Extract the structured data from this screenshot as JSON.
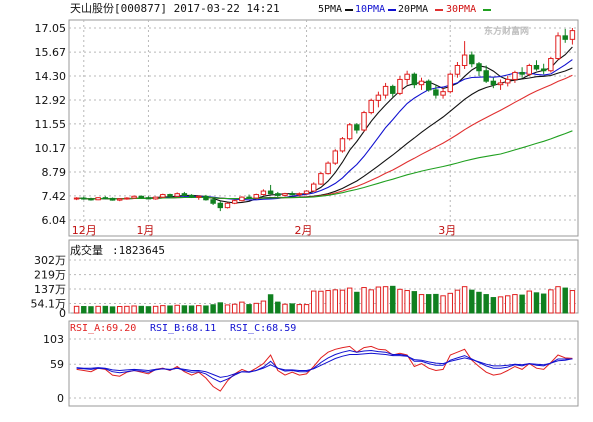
{
  "header": {
    "title": "天山股份[000877] 2017-03-22 14:21",
    "ma_legend": [
      {
        "label": "5PMA",
        "color": "#111111"
      },
      {
        "label": "10PMA",
        "color": "#1010d0"
      },
      {
        "label": "20PMA",
        "color": "#111111"
      },
      {
        "label": "30PMA",
        "color": "#d01010"
      }
    ]
  },
  "watermark": "东方财富网",
  "colors": {
    "up": "#e02020",
    "down": "#108020",
    "ma5": "#111111",
    "ma10": "#1010d0",
    "ma20": "#111111",
    "ma30": "#e03030",
    "ma60": "#20a020",
    "grid": "#b8b8b8",
    "rsi_a": "#e02020",
    "rsi_b": "#1010d0",
    "rsi_c": "#1010d0"
  },
  "chart_data": [
    {
      "type": "candlestick",
      "title": "天山股份[000877] 2017-03-22 14:21",
      "y_ticks": [
        "17.05",
        "15.67",
        "14.30",
        "12.92",
        "11.55",
        "10.17",
        "8.79",
        "7.42",
        "6.04"
      ],
      "ylim": [
        6.04,
        17.05
      ],
      "x_ticks": [
        "12月",
        "1月",
        "2月",
        "3月"
      ],
      "grid": true,
      "candles": [
        [
          7.25,
          7.35,
          7.18,
          7.3
        ],
        [
          7.3,
          7.38,
          7.2,
          7.25
        ],
        [
          7.25,
          7.32,
          7.15,
          7.2
        ],
        [
          7.2,
          7.35,
          7.18,
          7.32
        ],
        [
          7.32,
          7.4,
          7.22,
          7.28
        ],
        [
          7.28,
          7.33,
          7.15,
          7.18
        ],
        [
          7.18,
          7.3,
          7.12,
          7.25
        ],
        [
          7.25,
          7.35,
          7.2,
          7.3
        ],
        [
          7.3,
          7.45,
          7.25,
          7.4
        ],
        [
          7.4,
          7.45,
          7.28,
          7.32
        ],
        [
          7.32,
          7.4,
          7.22,
          7.25
        ],
        [
          7.25,
          7.38,
          7.2,
          7.35
        ],
        [
          7.35,
          7.55,
          7.3,
          7.5
        ],
        [
          7.5,
          7.55,
          7.35,
          7.4
        ],
        [
          7.4,
          7.62,
          7.35,
          7.55
        ],
        [
          7.55,
          7.65,
          7.4,
          7.45
        ],
        [
          7.45,
          7.52,
          7.3,
          7.35
        ],
        [
          7.35,
          7.45,
          7.2,
          7.4
        ],
        [
          7.4,
          7.48,
          7.15,
          7.2
        ],
        [
          7.2,
          7.3,
          6.9,
          7.0
        ],
        [
          7.0,
          7.1,
          6.55,
          6.75
        ],
        [
          6.75,
          7.05,
          6.7,
          7.0
        ],
        [
          7.0,
          7.2,
          6.95,
          7.15
        ],
        [
          7.15,
          7.4,
          7.1,
          7.35
        ],
        [
          7.35,
          7.5,
          7.25,
          7.3
        ],
        [
          7.3,
          7.55,
          7.28,
          7.5
        ],
        [
          7.5,
          7.8,
          7.45,
          7.7
        ],
        [
          7.7,
          8.05,
          7.6,
          7.55
        ],
        [
          7.55,
          7.65,
          7.35,
          7.45
        ],
        [
          7.45,
          7.6,
          7.4,
          7.55
        ],
        [
          7.55,
          7.68,
          7.45,
          7.5
        ],
        [
          7.5,
          7.62,
          7.42,
          7.55
        ],
        [
          7.55,
          7.75,
          7.5,
          7.7
        ],
        [
          7.7,
          8.2,
          7.65,
          8.1
        ],
        [
          8.1,
          8.8,
          8.05,
          8.7
        ],
        [
          8.7,
          9.4,
          8.65,
          9.3
        ],
        [
          9.3,
          10.1,
          9.2,
          10.0
        ],
        [
          10.0,
          10.8,
          9.9,
          10.7
        ],
        [
          10.7,
          11.6,
          10.6,
          11.5
        ],
        [
          11.5,
          11.6,
          11.0,
          11.2
        ],
        [
          11.2,
          12.3,
          11.1,
          12.2
        ],
        [
          12.2,
          13.0,
          12.1,
          12.9
        ],
        [
          12.9,
          13.4,
          12.5,
          13.2
        ],
        [
          13.2,
          13.9,
          13.0,
          13.7
        ],
        [
          13.7,
          13.8,
          13.1,
          13.3
        ],
        [
          13.3,
          14.3,
          13.2,
          14.1
        ],
        [
          14.1,
          14.6,
          13.8,
          14.4
        ],
        [
          14.4,
          14.5,
          13.6,
          13.8
        ],
        [
          13.8,
          14.2,
          13.5,
          14.0
        ],
        [
          14.0,
          14.1,
          13.4,
          13.5
        ],
        [
          13.5,
          13.8,
          13.0,
          13.2
        ],
        [
          13.2,
          13.6,
          13.0,
          13.4
        ],
        [
          13.4,
          14.5,
          13.3,
          14.4
        ],
        [
          14.4,
          15.1,
          14.2,
          14.9
        ],
        [
          14.9,
          16.3,
          14.7,
          15.5
        ],
        [
          15.5,
          15.7,
          14.8,
          15.0
        ],
        [
          15.0,
          15.1,
          14.3,
          14.6
        ],
        [
          14.6,
          14.9,
          13.9,
          14.0
        ],
        [
          14.0,
          14.2,
          13.6,
          13.8
        ],
        [
          13.8,
          14.1,
          13.5,
          13.9
        ],
        [
          13.9,
          14.3,
          13.7,
          14.1
        ],
        [
          14.1,
          14.6,
          13.9,
          14.5
        ],
        [
          14.5,
          14.8,
          14.2,
          14.4
        ],
        [
          14.4,
          15.0,
          14.3,
          14.9
        ],
        [
          14.9,
          15.2,
          14.6,
          14.7
        ],
        [
          14.7,
          15.0,
          14.4,
          14.6
        ],
        [
          14.6,
          15.4,
          14.5,
          15.3
        ],
        [
          15.3,
          16.8,
          15.2,
          16.6
        ],
        [
          16.6,
          17.0,
          16.2,
          16.4
        ],
        [
          16.4,
          17.05,
          16.1,
          16.9
        ]
      ]
    },
    {
      "type": "bar",
      "title": "成交量",
      "label": "成交量",
      "value_text": "1823645",
      "y_ticks": [
        "302万",
        "219万",
        "137万",
        "54.1万",
        "0"
      ],
      "ylim": [
        0,
        302
      ],
      "unit": "万",
      "values": [
        38,
        37,
        36,
        38,
        38,
        35,
        37,
        38,
        40,
        38,
        36,
        38,
        42,
        40,
        44,
        41,
        40,
        42,
        40,
        47,
        58,
        46,
        50,
        62,
        48,
        55,
        68,
        104,
        62,
        50,
        52,
        48,
        48,
        125,
        124,
        128,
        132,
        130,
        142,
        118,
        145,
        132,
        148,
        150,
        152,
        135,
        128,
        122,
        105,
        105,
        106,
        98,
        112,
        130,
        150,
        130,
        118,
        105,
        88,
        92,
        98,
        105,
        102,
        125,
        115,
        108,
        132,
        150,
        142,
        128
      ]
    },
    {
      "type": "line",
      "title": "RSI",
      "y_ticks": [
        "103",
        "59",
        "0"
      ],
      "ylim": [
        0,
        103
      ],
      "series": [
        {
          "name": "RSI_A",
          "value_text": "69.20",
          "values": [
            50,
            48,
            46,
            52,
            50,
            40,
            38,
            45,
            48,
            45,
            42,
            50,
            52,
            48,
            55,
            46,
            40,
            45,
            35,
            20,
            12,
            30,
            42,
            50,
            45,
            52,
            60,
            75,
            48,
            40,
            45,
            40,
            42,
            55,
            70,
            80,
            85,
            88,
            90,
            80,
            88,
            90,
            85,
            84,
            75,
            78,
            75,
            55,
            60,
            52,
            48,
            50,
            75,
            80,
            85,
            66,
            55,
            45,
            40,
            42,
            48,
            55,
            50,
            60,
            52,
            50,
            62,
            75,
            70,
            69.2
          ]
        },
        {
          "name": "RSI_B",
          "value_text": "68.11",
          "values": [
            52,
            51,
            50,
            52,
            51,
            46,
            44,
            46,
            48,
            47,
            45,
            49,
            51,
            49,
            52,
            48,
            45,
            46,
            42,
            34,
            28,
            33,
            40,
            46,
            45,
            48,
            54,
            64,
            52,
            47,
            48,
            46,
            46,
            52,
            62,
            70,
            76,
            80,
            83,
            80,
            82,
            83,
            81,
            80,
            76,
            76,
            74,
            64,
            64,
            60,
            57,
            57,
            66,
            70,
            74,
            68,
            62,
            56,
            52,
            52,
            54,
            58,
            56,
            60,
            57,
            56,
            61,
            68,
            68,
            68.1
          ]
        },
        {
          "name": "RSI_C",
          "value_text": "68.59",
          "values": [
            53,
            52,
            52,
            53,
            52,
            49,
            48,
            49,
            50,
            49,
            48,
            50,
            51,
            50,
            52,
            50,
            48,
            48,
            46,
            41,
            36,
            38,
            42,
            46,
            46,
            48,
            52,
            58,
            52,
            49,
            49,
            48,
            48,
            51,
            57,
            63,
            69,
            73,
            76,
            76,
            77,
            78,
            77,
            76,
            74,
            74,
            73,
            67,
            66,
            63,
            61,
            60,
            64,
            67,
            70,
            67,
            63,
            59,
            56,
            56,
            57,
            59,
            58,
            60,
            59,
            58,
            61,
            65,
            66,
            68.6
          ]
        }
      ]
    }
  ]
}
